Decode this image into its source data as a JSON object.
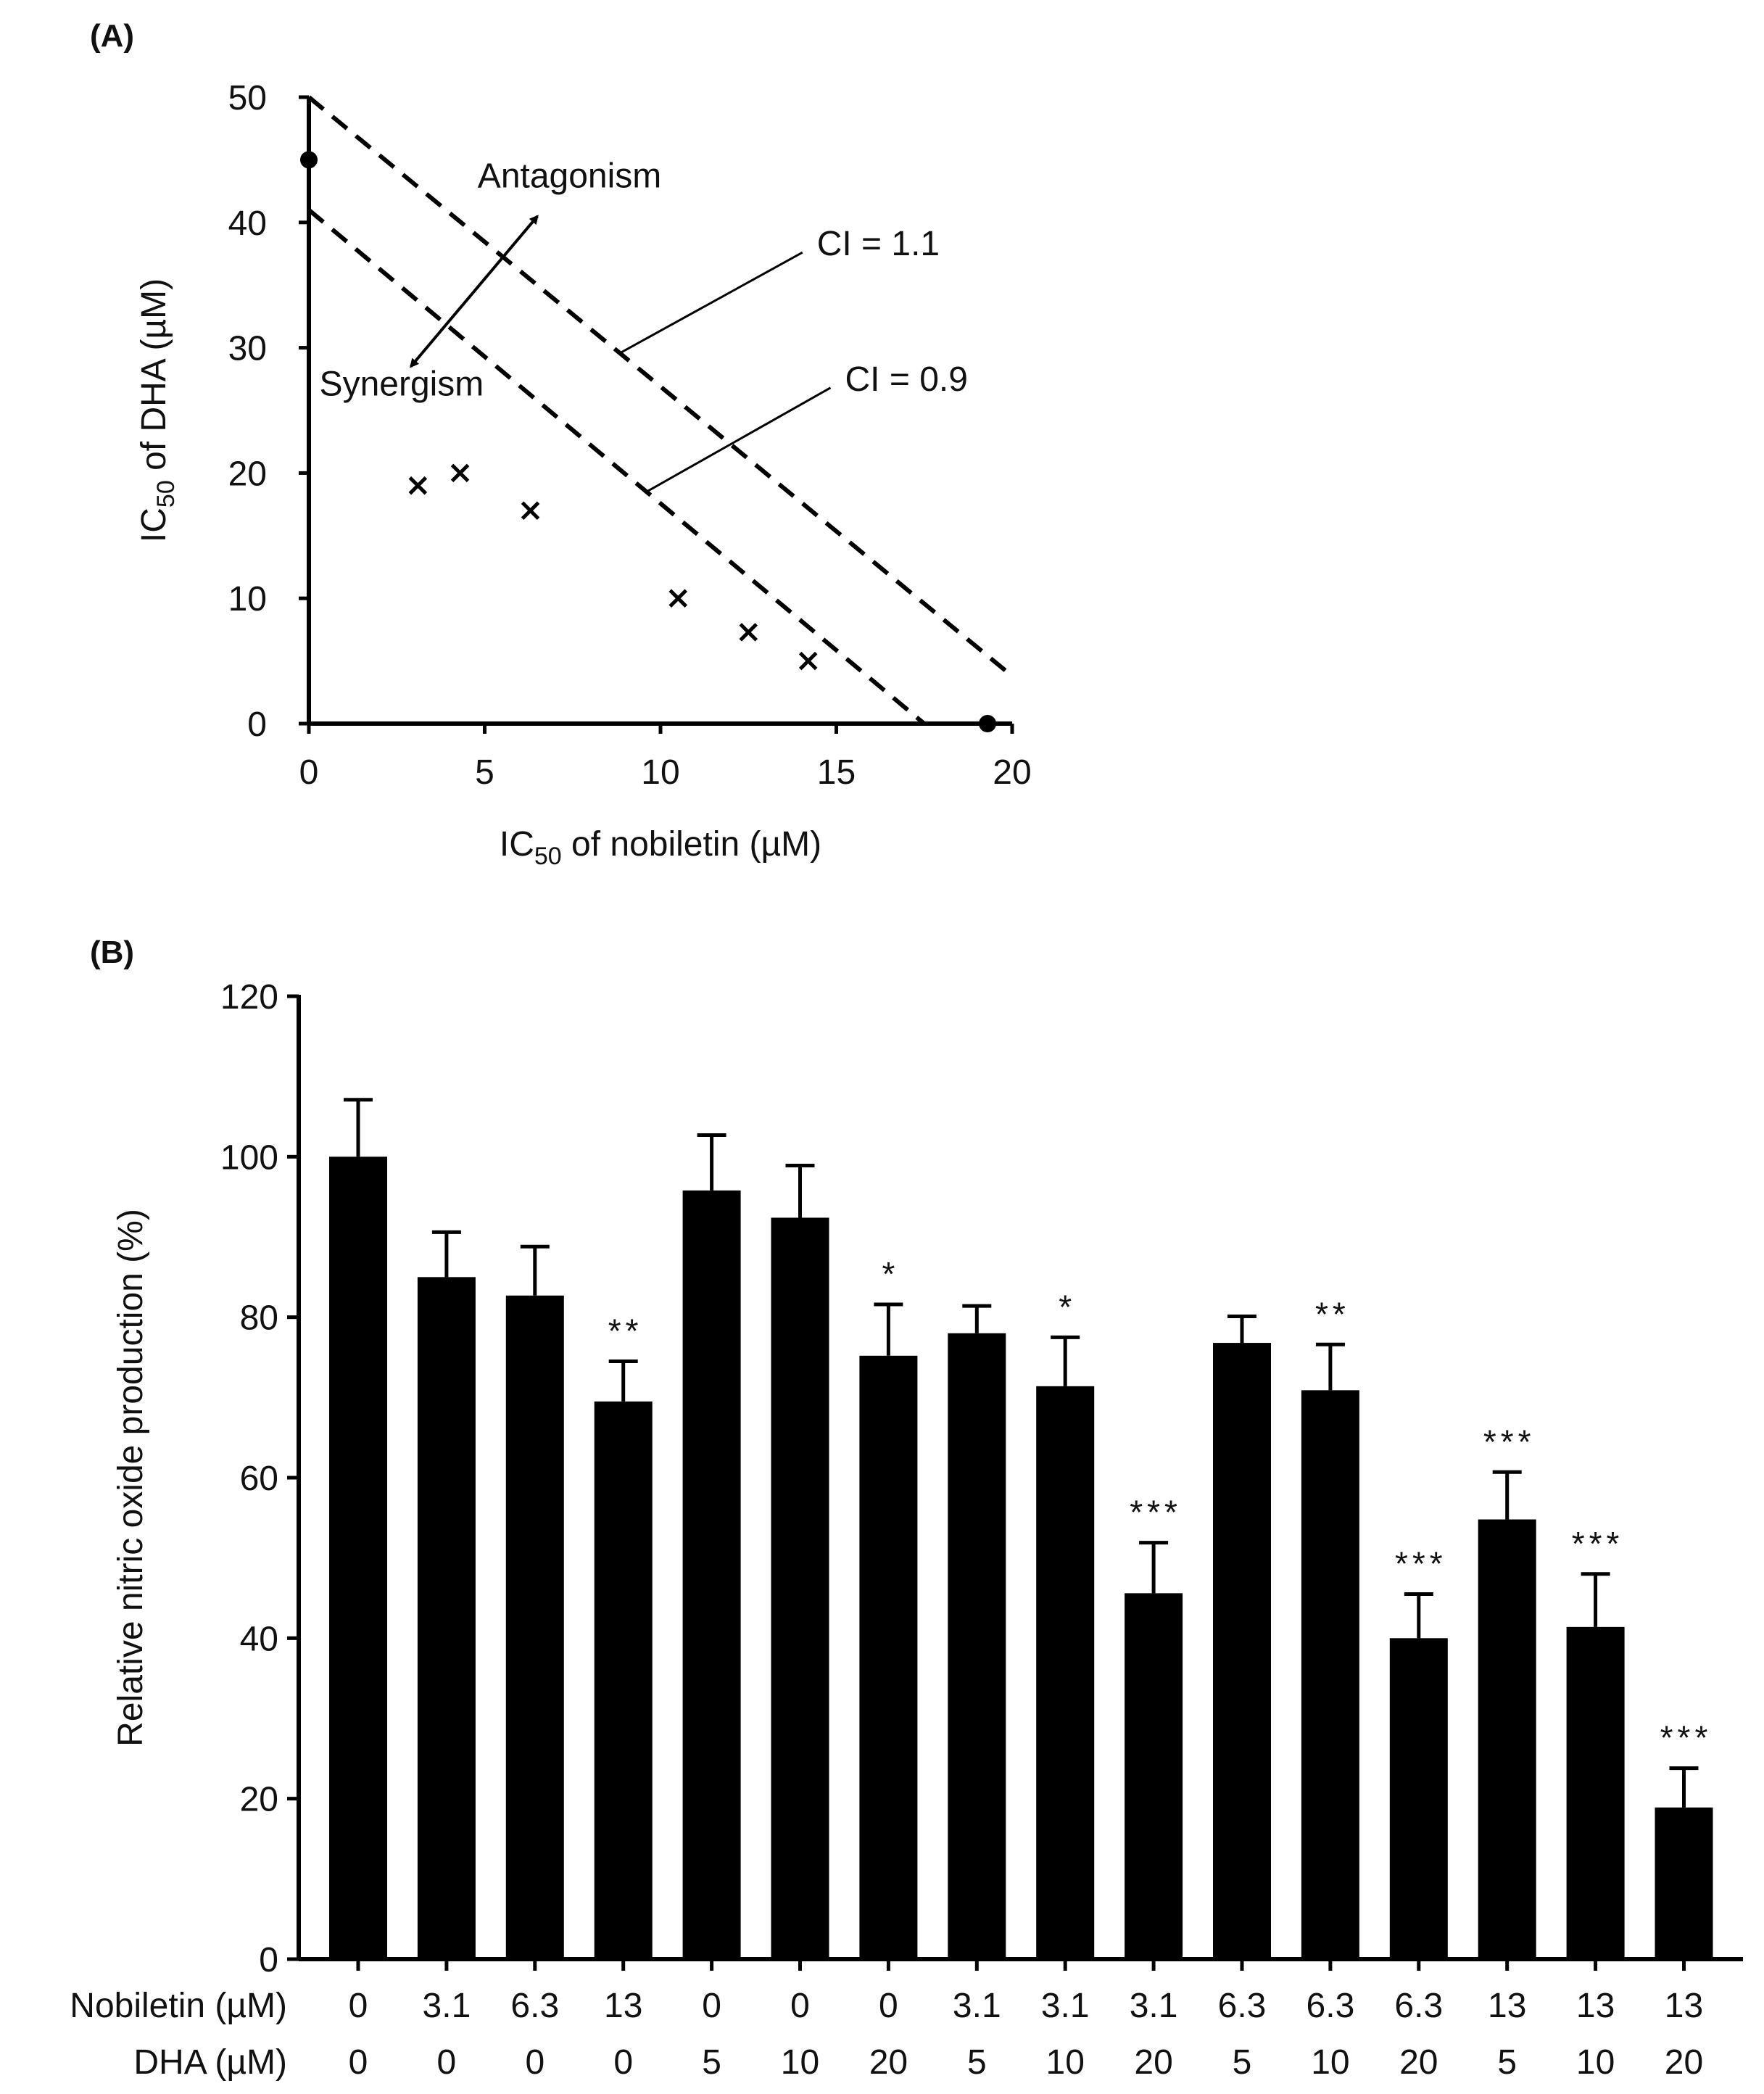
{
  "panel_a_label": "(A)",
  "panel_b_label": "(B)",
  "chart_data": [
    {
      "type": "scatter",
      "panel": "A",
      "title": "",
      "xlabel": "IC50 of nobiletin (µM)",
      "xlabel_main": "IC",
      "xlabel_sub": "50",
      "xlabel_rest": " of nobiletin (µM)",
      "ylabel": "IC50 of DHA (µM)",
      "ylabel_main": "IC",
      "ylabel_sub": "50",
      "ylabel_rest": " of DHA (µM)",
      "xlim": [
        0,
        20
      ],
      "ylim": [
        0,
        50
      ],
      "xticks": [
        0,
        5,
        10,
        15,
        20
      ],
      "yticks": [
        0,
        10,
        20,
        30,
        40,
        50
      ],
      "single_agent_points": [
        {
          "x": 0,
          "y": 45
        },
        {
          "x": 19.3,
          "y": 0
        }
      ],
      "combination_points": [
        {
          "x": 3.1,
          "y": 19
        },
        {
          "x": 4.3,
          "y": 20
        },
        {
          "x": 6.3,
          "y": 17
        },
        {
          "x": 10.5,
          "y": 10
        },
        {
          "x": 12.5,
          "y": 7.3
        },
        {
          "x": 14.2,
          "y": 5
        }
      ],
      "ci_lines": [
        {
          "label": "CI = 1.1",
          "x0": 0,
          "y0": 50,
          "x1": 20,
          "y1": 3.8,
          "label_x": 14.2,
          "label_y": 38.3,
          "pointer_x": 8.8,
          "pointer_y": 29.5
        },
        {
          "label": "CI = 0.9",
          "x0": 0,
          "y0": 41,
          "x1": 17.5,
          "y1": 0,
          "label_x": 15,
          "label_y": 27.5,
          "pointer_x": 9.6,
          "pointer_y": 18.5
        }
      ],
      "annotations": [
        {
          "text": "Antagonism",
          "x": 4.8,
          "y": 42.8
        },
        {
          "text": "Synergism",
          "x": 0.3,
          "y": 26.2
        }
      ],
      "arrow": {
        "from": {
          "x": 2.9,
          "y": 28.5
        },
        "to": {
          "x": 6.5,
          "y": 40.5
        }
      }
    },
    {
      "type": "bar",
      "panel": "B",
      "title": "",
      "ylabel": "Relative nitric oxide production (%)",
      "xlabel": "",
      "ylim": [
        0,
        120
      ],
      "yticks": [
        0,
        20,
        40,
        60,
        80,
        100,
        120
      ],
      "row_labels": [
        "Nobiletin (µM)",
        "DHA (µM)"
      ],
      "nobiletin": [
        "0",
        "3.1",
        "6.3",
        "13",
        "0",
        "0",
        "0",
        "3.1",
        "3.1",
        "3.1",
        "6.3",
        "6.3",
        "6.3",
        "13",
        "13",
        "13"
      ],
      "dha": [
        "0",
        "0",
        "0",
        "0",
        "5",
        "10",
        "20",
        "5",
        "10",
        "20",
        "5",
        "10",
        "20",
        "5",
        "10",
        "20"
      ],
      "values": [
        100,
        85,
        82.7,
        69.5,
        95.8,
        92.4,
        75.2,
        78,
        71.4,
        45.6,
        76.8,
        70.9,
        40,
        54.8,
        41.4,
        18.9
      ],
      "errors": [
        7.1,
        5.6,
        6.1,
        5,
        6.9,
        6.5,
        6.4,
        3.4,
        6.1,
        6.3,
        3.3,
        5.7,
        5.5,
        5.9,
        6.6,
        4.9
      ],
      "significance": [
        "",
        "",
        "",
        "**",
        "",
        "",
        "*",
        "",
        "*",
        "***",
        "",
        "**",
        "***",
        "***",
        "***",
        "***"
      ],
      "bar_color": "#000000"
    }
  ]
}
